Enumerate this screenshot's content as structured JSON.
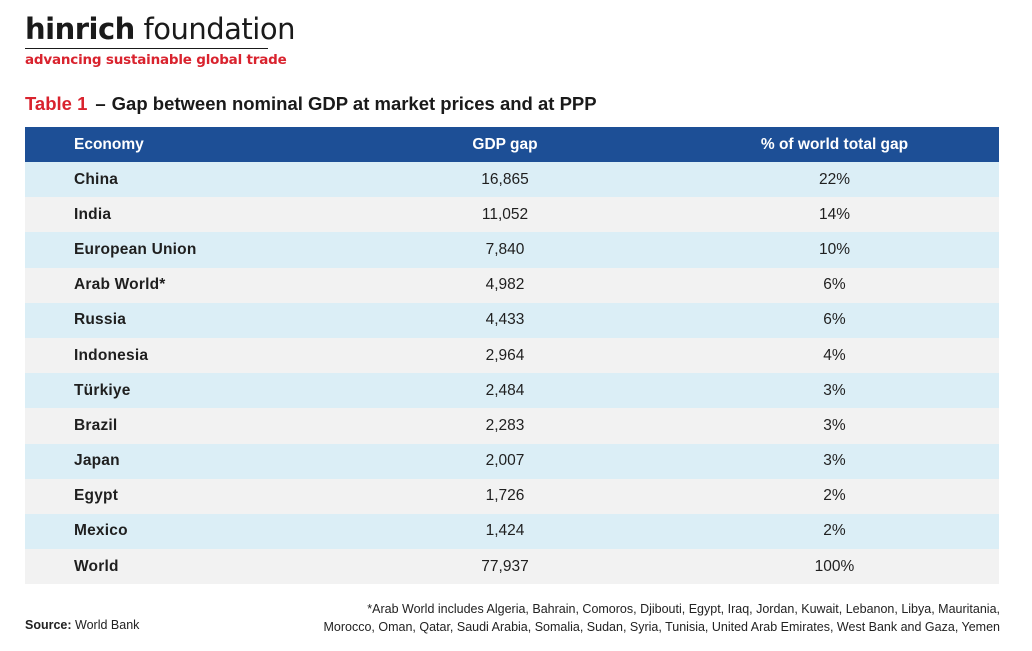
{
  "brand": {
    "name_bold": "hinrich",
    "name_rest": " foundation",
    "tagline": "advancing sustainable global trade",
    "colors": {
      "accent_red": "#d9232e",
      "header_blue": "#1d4f96",
      "row_blue": "#dbeef6",
      "row_grey": "#f2f2f2"
    }
  },
  "title": {
    "label": "Table 1",
    "dash": "–",
    "text": "Gap between nominal GDP at market prices and at PPP"
  },
  "table": {
    "headers": [
      "Economy",
      "GDP gap",
      "% of world total gap"
    ],
    "rows": [
      [
        "China",
        "16,865",
        "22%"
      ],
      [
        "India",
        "11,052",
        "14%"
      ],
      [
        "European Union",
        "7,840",
        "10%"
      ],
      [
        "Arab World*",
        "4,982",
        "6%"
      ],
      [
        "Russia",
        "4,433",
        "6%"
      ],
      [
        "Indonesia",
        "2,964",
        "4%"
      ],
      [
        "Türkiye",
        "2,484",
        "3%"
      ],
      [
        "Brazil",
        "2,283",
        "3%"
      ],
      [
        "Japan",
        "2,007",
        "3%"
      ],
      [
        "Egypt",
        "1,726",
        "2%"
      ],
      [
        "Mexico",
        "1,424",
        "2%"
      ],
      [
        "World",
        "77,937",
        "100%"
      ]
    ]
  },
  "source": {
    "label": "Source:",
    "text": " World Bank"
  },
  "footnote": {
    "line1": "*Arab World includes Algeria, Bahrain, Comoros, Djibouti, Egypt, Iraq, Jordan, Kuwait, Lebanon, Libya, Mauritania,",
    "line2": "Morocco, Oman, Qatar, Saudi Arabia, Somalia, Sudan, Syria, Tunisia, United Arab Emirates, West Bank and Gaza, Yemen"
  }
}
